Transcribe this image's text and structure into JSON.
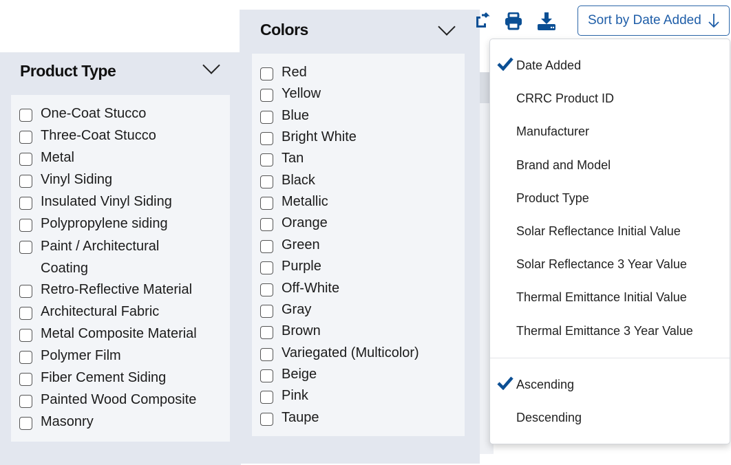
{
  "product_type": {
    "title": "Product Type",
    "items": [
      "One-Coat Stucco",
      "Three-Coat Stucco",
      "Metal",
      "Vinyl Siding",
      "Insulated Vinyl Siding",
      "Polypropylene siding",
      "Paint / Architectural Coating",
      "Retro-Reflective Material",
      "Architectural Fabric",
      "Metal Composite Material",
      "Polymer Film",
      "Fiber Cement Siding",
      "Painted Wood Composite",
      "Masonry"
    ]
  },
  "colors": {
    "title": "Colors",
    "items": [
      "Red",
      "Yellow",
      "Blue",
      "Bright White",
      "Tan",
      "Black",
      "Metallic",
      "Orange",
      "Green",
      "Purple",
      "Off-White",
      "Gray",
      "Brown",
      "Variegated (Multicolor)",
      "Beige",
      "Pink",
      "Taupe"
    ]
  },
  "toolbar": {
    "icons": [
      "share-icon",
      "print-icon",
      "download-icon"
    ],
    "sort_label": "Sort by Date Added"
  },
  "sort_menu": {
    "fields": [
      "Date Added",
      "CRRC Product ID",
      "Manufacturer",
      "Brand and Model",
      "Product Type",
      "Solar Reflectance Initial Value",
      "Solar Reflectance 3 Year Value",
      "Thermal Emittance Initial Value",
      "Thermal Emittance 3 Year Value"
    ],
    "selected_field": "Date Added",
    "orders": [
      "Ascending",
      "Descending"
    ],
    "selected_order": "Ascending"
  },
  "colors_theme": {
    "accent": "#0b4f94",
    "panel": "#e3e7ef"
  }
}
